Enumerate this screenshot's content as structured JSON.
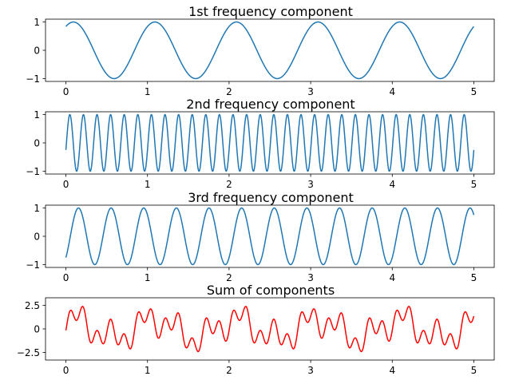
{
  "chart_data": [
    {
      "type": "line",
      "title": "1st frequency component",
      "function": "sin(2*pi*1*t + 1.0)",
      "x_range": [
        0,
        5
      ],
      "xlim": [
        -0.25,
        5.25
      ],
      "ylim": [
        -1.1,
        1.1
      ],
      "xticks": [
        0,
        1,
        2,
        3,
        4,
        5
      ],
      "yticks": [
        -1,
        0,
        1
      ],
      "color": "#1f77b4",
      "series": [
        {
          "frequency": 1,
          "phase": 1.0,
          "amplitude": 1
        }
      ]
    },
    {
      "type": "line",
      "title": "2nd frequency component",
      "function": "sin(2*pi*6*t - 0.25)",
      "x_range": [
        0,
        5
      ],
      "xlim": [
        -0.25,
        5.25
      ],
      "ylim": [
        -1.1,
        1.1
      ],
      "xticks": [
        0,
        1,
        2,
        3,
        4,
        5
      ],
      "yticks": [
        -1,
        0,
        1
      ],
      "color": "#1f77b4",
      "series": [
        {
          "frequency": 6,
          "phase": -0.25,
          "amplitude": 1
        }
      ]
    },
    {
      "type": "line",
      "title": "3rd frequency component",
      "function": "sin(2*pi*2.5*t - 0.85)",
      "x_range": [
        0,
        5
      ],
      "xlim": [
        -0.25,
        5.25
      ],
      "ylim": [
        -1.1,
        1.1
      ],
      "xticks": [
        0,
        1,
        2,
        3,
        4,
        5
      ],
      "yticks": [
        -1,
        0,
        1
      ],
      "color": "#1f77b4",
      "series": [
        {
          "frequency": 2.5,
          "phase": -0.85,
          "amplitude": 1
        }
      ]
    },
    {
      "type": "line",
      "title": "Sum of components",
      "function": "sum of the three components above",
      "x_range": [
        0,
        5
      ],
      "xlim": [
        -0.25,
        5.25
      ],
      "ylim": [
        -3.3,
        3.3
      ],
      "xticks": [
        0,
        1,
        2,
        3,
        4,
        5
      ],
      "yticks": [
        -2.5,
        0.0,
        2.5
      ],
      "color": "#ff0000",
      "series": [
        {
          "frequency": 1,
          "phase": 1.0,
          "amplitude": 1
        },
        {
          "frequency": 6,
          "phase": -0.25,
          "amplitude": 1
        },
        {
          "frequency": 2.5,
          "phase": -0.85,
          "amplitude": 1
        }
      ]
    }
  ]
}
